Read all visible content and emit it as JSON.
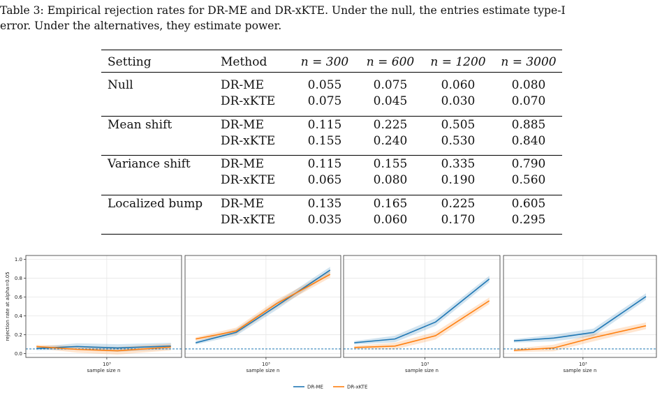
{
  "caption": "Table 3: Empirical rejection rates for DR-ME and DR-xKTE. Under the null, the entries estimate type-I\nerror. Under the alternatives, they estimate power.",
  "table": {
    "headers": [
      "Setting",
      "Method",
      "n = 300",
      "n = 600",
      "n = 1200",
      "n = 3000"
    ],
    "groups": [
      {
        "setting": "Null",
        "rows": [
          {
            "method": "DR-ME",
            "values": [
              "0.055",
              "0.075",
              "0.060",
              "0.080"
            ]
          },
          {
            "method": "DR-xKTE",
            "values": [
              "0.075",
              "0.045",
              "0.030",
              "0.070"
            ]
          }
        ]
      },
      {
        "setting": "Mean shift",
        "rows": [
          {
            "method": "DR-ME",
            "values": [
              "0.115",
              "0.225",
              "0.505",
              "0.885"
            ]
          },
          {
            "method": "DR-xKTE",
            "values": [
              "0.155",
              "0.240",
              "0.530",
              "0.840"
            ]
          }
        ]
      },
      {
        "setting": "Variance shift",
        "rows": [
          {
            "method": "DR-ME",
            "values": [
              "0.115",
              "0.155",
              "0.335",
              "0.790"
            ]
          },
          {
            "method": "DR-xKTE",
            "values": [
              "0.065",
              "0.080",
              "0.190",
              "0.560"
            ]
          }
        ]
      },
      {
        "setting": "Localized bump",
        "rows": [
          {
            "method": "DR-ME",
            "values": [
              "0.135",
              "0.165",
              "0.225",
              "0.605"
            ]
          },
          {
            "method": "DR-xKTE",
            "values": [
              "0.035",
              "0.060",
              "0.170",
              "0.295"
            ]
          }
        ]
      }
    ]
  },
  "chart_data": [
    {
      "type": "line",
      "x": [
        300,
        600,
        1200,
        3000
      ],
      "xscale": "log",
      "xlabel": "sample size n",
      "ylabel": "rejection rate at alpha=0.05",
      "ylim": [
        0,
        1.0
      ],
      "yticks": [
        "0.0",
        "0.2",
        "0.4",
        "0.6",
        "0.8",
        "1.0"
      ],
      "xtick": "10³",
      "alpha_line": 0.05,
      "grid": true,
      "series": [
        {
          "name": "DR-ME",
          "values": [
            0.055,
            0.075,
            0.06,
            0.08
          ],
          "color": "#1f77b4"
        },
        {
          "name": "DR-xKTE",
          "values": [
            0.075,
            0.045,
            0.03,
            0.07
          ],
          "color": "#ff7f0e"
        }
      ]
    },
    {
      "type": "line",
      "x": [
        300,
        600,
        1200,
        3000
      ],
      "xscale": "log",
      "xlabel": "sample size n",
      "ylim": [
        0,
        1.0
      ],
      "xtick": "10³",
      "alpha_line": 0.05,
      "grid": true,
      "series": [
        {
          "name": "DR-ME",
          "values": [
            0.115,
            0.225,
            0.505,
            0.885
          ],
          "color": "#1f77b4"
        },
        {
          "name": "DR-xKTE",
          "values": [
            0.155,
            0.24,
            0.53,
            0.84
          ],
          "color": "#ff7f0e"
        }
      ]
    },
    {
      "type": "line",
      "x": [
        300,
        600,
        1200,
        3000
      ],
      "xscale": "log",
      "xlabel": "sample size n",
      "ylim": [
        0,
        1.0
      ],
      "xtick": "10³",
      "alpha_line": 0.05,
      "grid": true,
      "series": [
        {
          "name": "DR-ME",
          "values": [
            0.115,
            0.155,
            0.335,
            0.79
          ],
          "color": "#1f77b4"
        },
        {
          "name": "DR-xKTE",
          "values": [
            0.065,
            0.08,
            0.19,
            0.56
          ],
          "color": "#ff7f0e"
        }
      ]
    },
    {
      "type": "line",
      "x": [
        300,
        600,
        1200,
        3000
      ],
      "xscale": "log",
      "xlabel": "sample size n",
      "ylim": [
        0,
        1.0
      ],
      "xtick": "10³",
      "alpha_line": 0.05,
      "grid": true,
      "series": [
        {
          "name": "DR-ME",
          "values": [
            0.135,
            0.165,
            0.225,
            0.605
          ],
          "color": "#1f77b4"
        },
        {
          "name": "DR-xKTE",
          "values": [
            0.035,
            0.06,
            0.17,
            0.295
          ],
          "color": "#ff7f0e"
        }
      ]
    }
  ],
  "legend": {
    "position": "bottom-center",
    "items": [
      {
        "label": "DR-ME",
        "color": "#1f77b4"
      },
      {
        "label": "DR-xKTE",
        "color": "#ff7f0e"
      }
    ]
  }
}
